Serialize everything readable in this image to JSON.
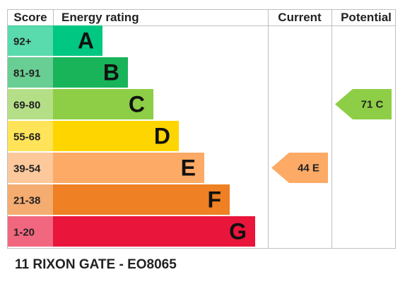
{
  "chart_data": {
    "type": "bar",
    "headers": {
      "score": "Score",
      "rating": "Energy rating",
      "current": "Current",
      "potential": "Potential"
    },
    "bands": [
      {
        "score": "92+",
        "letter": "A",
        "color": "#00c781"
      },
      {
        "score": "81-91",
        "letter": "B",
        "color": "#19b459"
      },
      {
        "score": "69-80",
        "letter": "C",
        "color": "#8dce46"
      },
      {
        "score": "55-68",
        "letter": "D",
        "color": "#ffd500"
      },
      {
        "score": "39-54",
        "letter": "E",
        "color": "#fcaa65"
      },
      {
        "score": "21-38",
        "letter": "F",
        "color": "#ef8023"
      },
      {
        "score": "1-20",
        "letter": "G",
        "color": "#e9153b"
      }
    ],
    "current": {
      "value": 44,
      "letter": "E",
      "label": "44 E",
      "color": "#fcaa65"
    },
    "potential": {
      "value": 71,
      "letter": "C",
      "label": "71 C",
      "color": "#8dce46"
    }
  },
  "caption": "11 RIXON GATE - EO8065"
}
